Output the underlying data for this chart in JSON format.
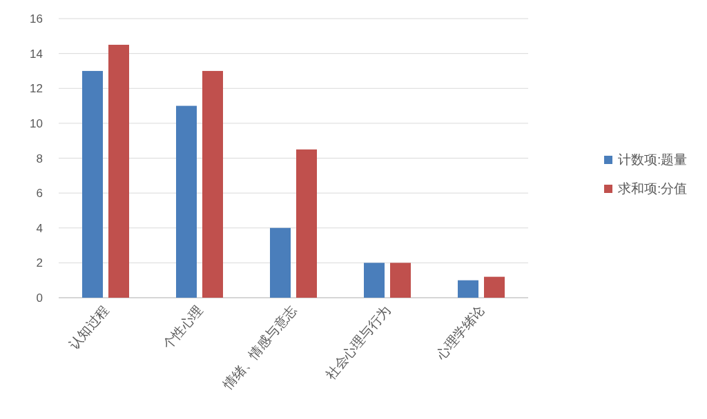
{
  "chart_data": {
    "type": "bar",
    "categories": [
      "认知过程",
      "个性心理",
      "情绪、情感与意志",
      "社会心理与行为",
      "心理学绪论"
    ],
    "series": [
      {
        "name": "计数项:题量",
        "color": "#4a7ebb",
        "values": [
          13,
          11,
          4,
          2,
          1
        ]
      },
      {
        "name": "求和项:分值",
        "color": "#c0504d",
        "values": [
          14.5,
          13,
          8.5,
          2,
          1.2
        ]
      }
    ],
    "ylim": [
      0,
      16
    ],
    "yticks": [
      0,
      2,
      4,
      6,
      8,
      10,
      12,
      14,
      16
    ],
    "grid": "y",
    "legend": "right"
  }
}
